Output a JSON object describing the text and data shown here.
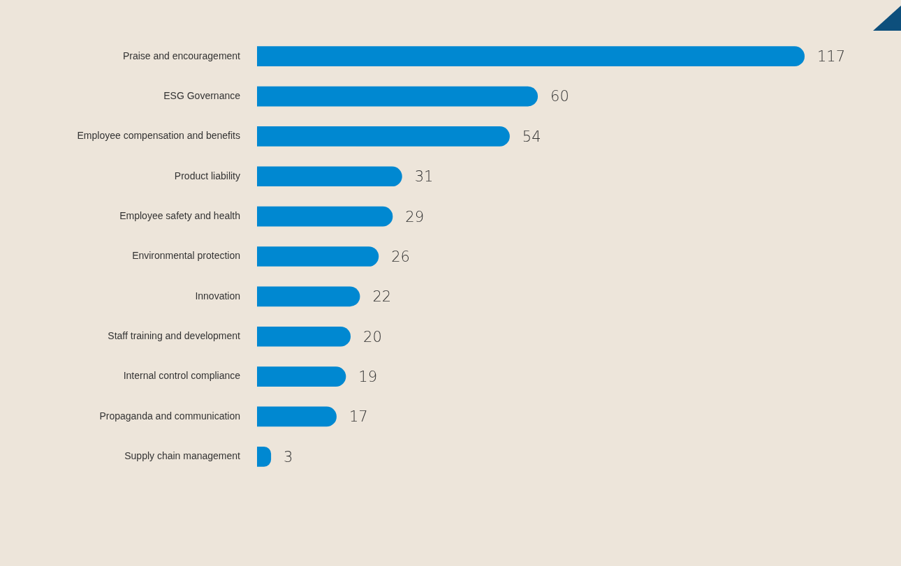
{
  "chart_data": {
    "type": "bar",
    "orientation": "horizontal",
    "data_labels": true,
    "legend": false,
    "categories": [
      "Praise and encouragement",
      "ESG Governance",
      "Employee compensation and benefits",
      "Product liability",
      "Employee safety and health",
      "Environmental protection",
      "Innovation",
      "Staff training and development",
      "Internal control compliance",
      "Propaganda and communication",
      "Supply chain management"
    ],
    "values": [
      117,
      60,
      54,
      31,
      29,
      26,
      22,
      20,
      19,
      17,
      3
    ],
    "color": "#0088d1"
  }
}
